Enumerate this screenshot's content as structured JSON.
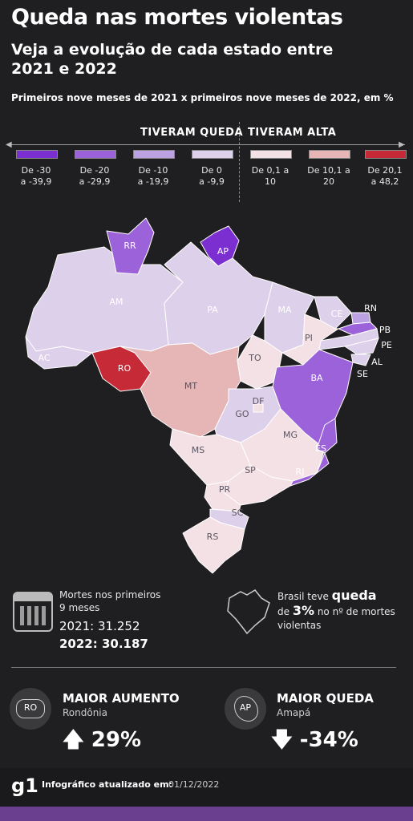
{
  "header": {
    "title": "Queda nas mortes violentas",
    "subtitle": "Veja a evolução de cada estado entre 2021 e 2022",
    "note": "Primeiros nove meses de 2021 x primeiros nove meses de 2022, em %"
  },
  "legend": {
    "fall_label": "TIVERAM QUEDA",
    "rise_label": "TIVERAM ALTA",
    "items": [
      {
        "label": "De -30\na -39,9",
        "color": "#7b2fd1"
      },
      {
        "label": "De -20\na -29,9",
        "color": "#9b62d9"
      },
      {
        "label": "De -10\na -19,9",
        "color": "#bda2e3"
      },
      {
        "label": "De 0\na -9,9",
        "color": "#ddd0ea"
      },
      {
        "label": "De 0,1 a\n10",
        "color": "#f4e1e5"
      },
      {
        "label": "De 10,1 a\n20",
        "color": "#e6b5b6"
      },
      {
        "label": "De 20,1\na 48,2",
        "color": "#c52a36"
      }
    ]
  },
  "map": {
    "states": [
      "RR",
      "AP",
      "AM",
      "PA",
      "MA",
      "CE",
      "RN",
      "PB",
      "PE",
      "AL",
      "SE",
      "PI",
      "TO",
      "BA",
      "AC",
      "RO",
      "MT",
      "DF",
      "GO",
      "MG",
      "ES",
      "RJ",
      "MS",
      "SP",
      "PR",
      "SC",
      "RS"
    ]
  },
  "stats": {
    "deaths_label": "Mortes  nos primeiros 9 meses",
    "deaths_2021": "2021: 31.252",
    "deaths_2022": "2022: 30.187",
    "brazil_pre": "Brasil teve",
    "brazil_word": "queda",
    "brazil_de": "de",
    "brazil_pct": "3%",
    "brazil_post": "no nº de mortes violentas"
  },
  "highlights": {
    "increase": {
      "head": "MAIOR AUMENTO",
      "state": "Rondônia",
      "abbr": "RO",
      "arrow": "🡅",
      "value": "29%"
    },
    "decrease": {
      "head": "MAIOR QUEDA",
      "state": "Amapá",
      "abbr": "AP",
      "arrow": "🡇",
      "value": "-34%"
    }
  },
  "footer": {
    "logo": "g1",
    "updated_label": "Infográfico atualizado em:",
    "updated_date": "01/12/2022"
  }
}
